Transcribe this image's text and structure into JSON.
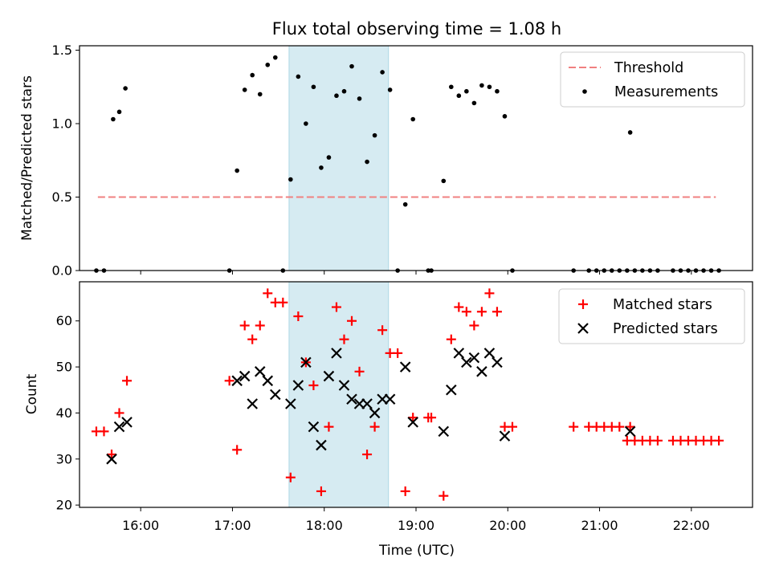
{
  "title": "Flux total observing time = 1.08 h",
  "xlabel": "Time (UTC)",
  "x_ticks": [
    "16:00",
    "17:00",
    "18:00",
    "19:00",
    "20:00",
    "21:00",
    "22:00"
  ],
  "colors": {
    "threshold": "#f08080",
    "measurement": "#000000",
    "matched": "#ff0000",
    "predicted": "#000000",
    "span": "#add8e6"
  },
  "chart_data": [
    {
      "type": "scatter",
      "ylabel": "Matched/Predicted stars",
      "x_range": [
        "15:20",
        "22:40"
      ],
      "ylim": [
        0,
        1.53
      ],
      "y_ticks": [
        "0.0",
        "0.5",
        "1.0",
        "1.5"
      ],
      "highlight_span": [
        "17:37",
        "18:42"
      ],
      "threshold": {
        "label": "Threshold",
        "value": 0.5,
        "x": [
          "15:32",
          "22:16"
        ]
      },
      "legend_position": "upper right",
      "series": [
        {
          "name": "Measurements",
          "points": [
            [
              "15:31",
              0
            ],
            [
              "15:36",
              0
            ],
            [
              "15:42",
              1.03
            ],
            [
              "15:46",
              1.08
            ],
            [
              "15:50",
              1.24
            ],
            [
              "16:58",
              0
            ],
            [
              "17:03",
              0.68
            ],
            [
              "17:08",
              1.23
            ],
            [
              "17:13",
              1.33
            ],
            [
              "17:18",
              1.2
            ],
            [
              "17:23",
              1.4
            ],
            [
              "17:28",
              1.45
            ],
            [
              "17:33",
              0
            ],
            [
              "17:38",
              0.62
            ],
            [
              "17:43",
              1.32
            ],
            [
              "17:48",
              1.0
            ],
            [
              "17:53",
              1.25
            ],
            [
              "17:58",
              0.7
            ],
            [
              "18:03",
              0.77
            ],
            [
              "18:08",
              1.19
            ],
            [
              "18:13",
              1.22
            ],
            [
              "18:18",
              1.39
            ],
            [
              "18:23",
              1.17
            ],
            [
              "18:28",
              0.74
            ],
            [
              "18:33",
              0.92
            ],
            [
              "18:38",
              1.35
            ],
            [
              "18:43",
              1.23
            ],
            [
              "18:48",
              0
            ],
            [
              "18:53",
              0.45
            ],
            [
              "18:58",
              1.03
            ],
            [
              "19:08",
              0
            ],
            [
              "19:10",
              0
            ],
            [
              "19:18",
              0.61
            ],
            [
              "19:23",
              1.25
            ],
            [
              "19:28",
              1.19
            ],
            [
              "19:33",
              1.22
            ],
            [
              "19:38",
              1.14
            ],
            [
              "19:43",
              1.26
            ],
            [
              "19:48",
              1.25
            ],
            [
              "19:53",
              1.22
            ],
            [
              "19:58",
              1.05
            ],
            [
              "20:03",
              0
            ],
            [
              "20:43",
              0
            ],
            [
              "20:53",
              0
            ],
            [
              "20:58",
              0
            ],
            [
              "21:03",
              0
            ],
            [
              "21:08",
              0
            ],
            [
              "21:13",
              0
            ],
            [
              "21:18",
              0
            ],
            [
              "21:20",
              0.94
            ],
            [
              "21:23",
              0
            ],
            [
              "21:28",
              0
            ],
            [
              "21:33",
              0
            ],
            [
              "21:38",
              0
            ],
            [
              "21:48",
              0
            ],
            [
              "21:53",
              0
            ],
            [
              "21:58",
              0
            ],
            [
              "22:03",
              0
            ],
            [
              "22:08",
              0
            ],
            [
              "22:13",
              0
            ],
            [
              "22:18",
              0
            ]
          ]
        }
      ]
    },
    {
      "type": "scatter",
      "ylabel": "Count",
      "x_range": [
        "15:20",
        "22:40"
      ],
      "ylim": [
        19.5,
        68.5
      ],
      "y_ticks": [
        "20",
        "30",
        "40",
        "50",
        "60"
      ],
      "highlight_span": [
        "17:37",
        "18:42"
      ],
      "legend_position": "upper right",
      "series": [
        {
          "name": "Matched stars",
          "marker": "plus",
          "points": [
            [
              "15:31",
              36
            ],
            [
              "15:36",
              36
            ],
            [
              "15:41",
              31
            ],
            [
              "15:46",
              40
            ],
            [
              "15:51",
              47
            ],
            [
              "16:58",
              47
            ],
            [
              "17:03",
              32
            ],
            [
              "17:08",
              59
            ],
            [
              "17:13",
              56
            ],
            [
              "17:18",
              59
            ],
            [
              "17:23",
              66
            ],
            [
              "17:28",
              64
            ],
            [
              "17:33",
              64
            ],
            [
              "17:38",
              26
            ],
            [
              "17:43",
              61
            ],
            [
              "17:48",
              51
            ],
            [
              "17:53",
              46
            ],
            [
              "17:58",
              23
            ],
            [
              "18:03",
              37
            ],
            [
              "18:08",
              63
            ],
            [
              "18:13",
              56
            ],
            [
              "18:18",
              60
            ],
            [
              "18:23",
              49
            ],
            [
              "18:28",
              31
            ],
            [
              "18:33",
              37
            ],
            [
              "18:38",
              58
            ],
            [
              "18:43",
              53
            ],
            [
              "18:48",
              53
            ],
            [
              "18:53",
              23
            ],
            [
              "18:58",
              39
            ],
            [
              "19:08",
              39
            ],
            [
              "19:10",
              39
            ],
            [
              "19:18",
              22
            ],
            [
              "19:23",
              56
            ],
            [
              "19:28",
              63
            ],
            [
              "19:33",
              62
            ],
            [
              "19:38",
              59
            ],
            [
              "19:43",
              62
            ],
            [
              "19:48",
              66
            ],
            [
              "19:53",
              62
            ],
            [
              "19:58",
              37
            ],
            [
              "20:03",
              37
            ],
            [
              "20:43",
              37
            ],
            [
              "20:53",
              37
            ],
            [
              "20:58",
              37
            ],
            [
              "21:03",
              37
            ],
            [
              "21:08",
              37
            ],
            [
              "21:13",
              37
            ],
            [
              "21:18",
              34
            ],
            [
              "21:20",
              37
            ],
            [
              "21:23",
              34
            ],
            [
              "21:28",
              34
            ],
            [
              "21:33",
              34
            ],
            [
              "21:38",
              34
            ],
            [
              "21:48",
              34
            ],
            [
              "21:53",
              34
            ],
            [
              "21:58",
              34
            ],
            [
              "22:03",
              34
            ],
            [
              "22:08",
              34
            ],
            [
              "22:13",
              34
            ],
            [
              "22:18",
              34
            ]
          ]
        },
        {
          "name": "Predicted stars",
          "marker": "x",
          "points": [
            [
              "15:41",
              30
            ],
            [
              "15:46",
              37
            ],
            [
              "15:51",
              38
            ],
            [
              "17:03",
              47
            ],
            [
              "17:08",
              48
            ],
            [
              "17:13",
              42
            ],
            [
              "17:18",
              49
            ],
            [
              "17:23",
              47
            ],
            [
              "17:28",
              44
            ],
            [
              "17:38",
              42
            ],
            [
              "17:43",
              46
            ],
            [
              "17:48",
              51
            ],
            [
              "17:53",
              37
            ],
            [
              "17:58",
              33
            ],
            [
              "18:03",
              48
            ],
            [
              "18:08",
              53
            ],
            [
              "18:13",
              46
            ],
            [
              "18:18",
              43
            ],
            [
              "18:23",
              42
            ],
            [
              "18:28",
              42
            ],
            [
              "18:33",
              40
            ],
            [
              "18:38",
              43
            ],
            [
              "18:43",
              43
            ],
            [
              "18:53",
              50
            ],
            [
              "18:58",
              38
            ],
            [
              "19:18",
              36
            ],
            [
              "19:23",
              45
            ],
            [
              "19:28",
              53
            ],
            [
              "19:33",
              51
            ],
            [
              "19:38",
              52
            ],
            [
              "19:43",
              49
            ],
            [
              "19:48",
              53
            ],
            [
              "19:53",
              51
            ],
            [
              "19:58",
              35
            ],
            [
              "21:20",
              36
            ]
          ]
        }
      ]
    }
  ]
}
